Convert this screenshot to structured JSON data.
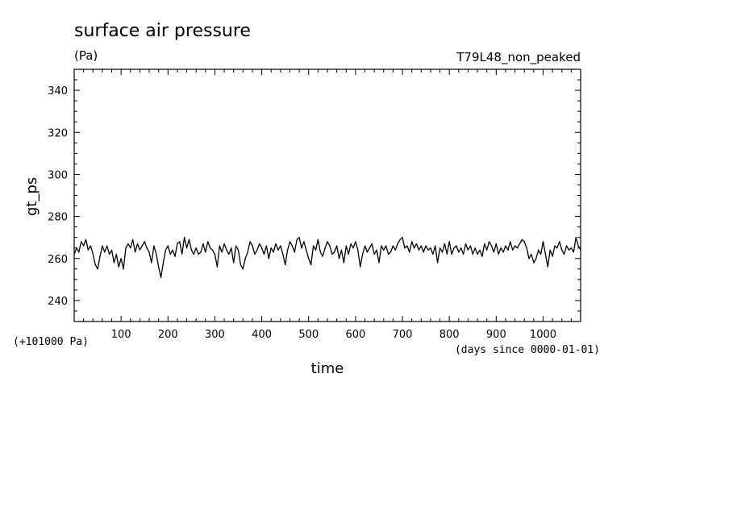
{
  "chart_data": {
    "type": "line",
    "title": "surface air pressure",
    "units_label": "(Pa)",
    "experiment_label": "T79L48_non_peaked",
    "ylabel": "gt_ps",
    "xlabel": "time",
    "x_units_label": "(days since 0000-01-01)",
    "y_offset_label": "(+101000 Pa)",
    "xlim": [
      0,
      1080
    ],
    "ylim": [
      230,
      350
    ],
    "xticks": [
      100,
      200,
      300,
      400,
      500,
      600,
      700,
      800,
      900,
      1000
    ],
    "yticks": [
      240,
      260,
      280,
      300,
      320,
      340
    ],
    "grid": false,
    "series": [
      {
        "color": "#000000",
        "x": [
          0,
          5,
          10,
          15,
          20,
          25,
          30,
          35,
          40,
          45,
          50,
          55,
          60,
          65,
          70,
          75,
          80,
          85,
          90,
          95,
          100,
          105,
          110,
          115,
          120,
          125,
          130,
          135,
          140,
          145,
          150,
          155,
          160,
          165,
          170,
          175,
          180,
          185,
          190,
          195,
          200,
          205,
          210,
          215,
          220,
          225,
          230,
          235,
          240,
          245,
          250,
          255,
          260,
          265,
          270,
          275,
          280,
          285,
          290,
          295,
          300,
          305,
          310,
          315,
          320,
          325,
          330,
          335,
          340,
          345,
          350,
          355,
          360,
          365,
          370,
          375,
          380,
          385,
          390,
          395,
          400,
          405,
          410,
          415,
          420,
          425,
          430,
          435,
          440,
          445,
          450,
          455,
          460,
          465,
          470,
          475,
          480,
          485,
          490,
          495,
          500,
          505,
          510,
          515,
          520,
          525,
          530,
          535,
          540,
          545,
          550,
          555,
          560,
          565,
          570,
          575,
          580,
          585,
          590,
          595,
          600,
          605,
          610,
          615,
          620,
          625,
          630,
          635,
          640,
          645,
          650,
          655,
          660,
          665,
          670,
          675,
          680,
          685,
          690,
          695,
          700,
          705,
          710,
          715,
          720,
          725,
          730,
          735,
          740,
          745,
          750,
          755,
          760,
          765,
          770,
          775,
          780,
          785,
          790,
          795,
          800,
          805,
          810,
          815,
          820,
          825,
          830,
          835,
          840,
          845,
          850,
          855,
          860,
          865,
          870,
          875,
          880,
          885,
          890,
          895,
          900,
          905,
          910,
          915,
          920,
          925,
          930,
          935,
          940,
          945,
          950,
          955,
          960,
          965,
          970,
          975,
          980,
          985,
          990,
          995,
          1000,
          1005,
          1010,
          1015,
          1020,
          1025,
          1030,
          1035,
          1040,
          1045,
          1050,
          1055,
          1060,
          1065,
          1070,
          1075,
          1080
        ],
        "values": [
          262,
          265,
          263,
          268,
          266,
          269,
          264,
          266,
          262,
          257,
          255,
          261,
          266,
          263,
          266,
          262,
          264,
          258,
          262,
          256,
          260,
          255,
          265,
          267,
          265,
          269,
          263,
          267,
          264,
          266,
          268,
          265,
          263,
          258,
          266,
          262,
          256,
          251,
          258,
          264,
          266,
          262,
          264,
          261,
          267,
          268,
          262,
          270,
          265,
          269,
          264,
          262,
          265,
          262,
          263,
          267,
          263,
          268,
          265,
          264,
          262,
          256,
          266,
          263,
          267,
          264,
          262,
          265,
          258,
          266,
          264,
          257,
          255,
          260,
          263,
          268,
          266,
          262,
          264,
          267,
          265,
          262,
          266,
          260,
          265,
          263,
          267,
          264,
          266,
          262,
          257,
          264,
          268,
          266,
          263,
          269,
          270,
          265,
          268,
          264,
          260,
          257,
          266,
          264,
          269,
          263,
          261,
          265,
          268,
          266,
          262,
          263,
          266,
          260,
          264,
          258,
          266,
          262,
          267,
          265,
          268,
          264,
          256,
          262,
          266,
          263,
          265,
          267,
          262,
          264,
          258,
          266,
          264,
          266,
          262,
          263,
          266,
          264,
          267,
          269,
          270,
          265,
          266,
          263,
          268,
          265,
          267,
          264,
          266,
          263,
          266,
          264,
          265,
          262,
          266,
          258,
          265,
          263,
          267,
          262,
          268,
          262,
          265,
          266,
          263,
          265,
          262,
          267,
          264,
          266,
          262,
          265,
          262,
          264,
          261,
          267,
          264,
          268,
          266,
          263,
          267,
          262,
          265,
          263,
          266,
          264,
          268,
          264,
          266,
          265,
          267,
          269,
          268,
          265,
          260,
          262,
          258,
          260,
          264,
          262,
          268,
          262,
          256,
          264,
          261,
          266,
          265,
          268,
          264,
          262,
          266,
          264,
          265,
          263,
          270,
          266,
          264
        ]
      }
    ]
  }
}
